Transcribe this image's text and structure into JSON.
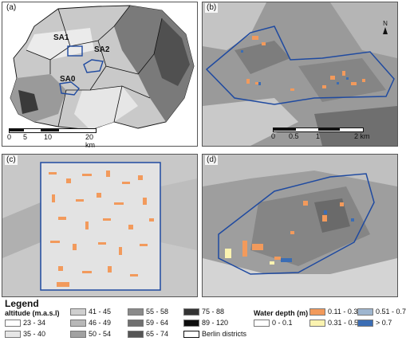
{
  "panels": {
    "a": {
      "label": "(a)",
      "study_areas": [
        "SA1",
        "SA2",
        "SA0"
      ],
      "scale_ticks": [
        "0",
        "5",
        "10",
        "20 km"
      ]
    },
    "b": {
      "label": "(b)",
      "north": "N",
      "scale_ticks": [
        "0",
        "0.5",
        "1",
        "2 km"
      ]
    },
    "c": {
      "label": "(c)"
    },
    "d": {
      "label": "(d)"
    }
  },
  "legend": {
    "title": "Legend",
    "altitude_title": "altitude (m.a.s.l)",
    "altitude_classes": [
      {
        "label": "23 - 34",
        "color": "#ffffff"
      },
      {
        "label": "35 - 40",
        "color": "#e6e6e6"
      },
      {
        "label": "41 - 45",
        "color": "#cfcfcf"
      },
      {
        "label": "46 - 49",
        "color": "#b8b8b8"
      },
      {
        "label": "50 - 54",
        "color": "#a1a1a1"
      },
      {
        "label": "55 - 58",
        "color": "#8a8a8a"
      },
      {
        "label": "59 - 64",
        "color": "#707070"
      },
      {
        "label": "65 - 74",
        "color": "#555555"
      },
      {
        "label": "75 - 88",
        "color": "#333333"
      },
      {
        "label": "89 - 120",
        "color": "#0d0d0d"
      }
    ],
    "districts_label": "Berlin districts",
    "water_title": "Water depth (m)",
    "water_classes": [
      {
        "label": "0 - 0.1",
        "color": "#ffffff"
      },
      {
        "label": "0.11 - 0.3",
        "color": "#f29a5c"
      },
      {
        "label": "0.31 - 0.5",
        "color": "#fbf3b0"
      },
      {
        "label": "0.51 - 0.7",
        "color": "#9fb6cf"
      },
      {
        "label": "> 0.7",
        "color": "#3b6db4"
      }
    ]
  },
  "colors": {
    "study_area_outline": "#1f4aa0",
    "district_outline": "#111111"
  }
}
